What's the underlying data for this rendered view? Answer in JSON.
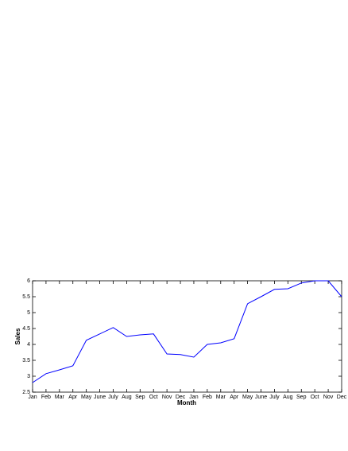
{
  "chart_data": {
    "type": "line",
    "xlabel": "Month",
    "ylabel": "Sales",
    "categories": [
      "Jan",
      "Feb",
      "Mar",
      "Apr",
      "May",
      "June",
      "July",
      "Aug",
      "Sep",
      "Oct",
      "Nov",
      "Dec",
      "Jan",
      "Feb",
      "Mar",
      "Apr",
      "May",
      "June",
      "July",
      "Aug",
      "Sep",
      "Oct",
      "Nov",
      "Dec"
    ],
    "series": [
      {
        "name": "Sales",
        "color": "#0000ff",
        "values": [
          2.8,
          3.08,
          3.2,
          3.33,
          4.13,
          4.33,
          4.53,
          4.25,
          4.3,
          4.33,
          3.7,
          3.68,
          3.6,
          4.0,
          4.05,
          4.18,
          5.28,
          5.5,
          5.73,
          5.75,
          5.93,
          6.0,
          6.0,
          5.5
        ]
      }
    ],
    "ylim": [
      2.5,
      6
    ],
    "yticks": [
      2.5,
      3,
      3.5,
      4,
      4.5,
      5,
      5.5,
      6
    ],
    "grid": false
  }
}
